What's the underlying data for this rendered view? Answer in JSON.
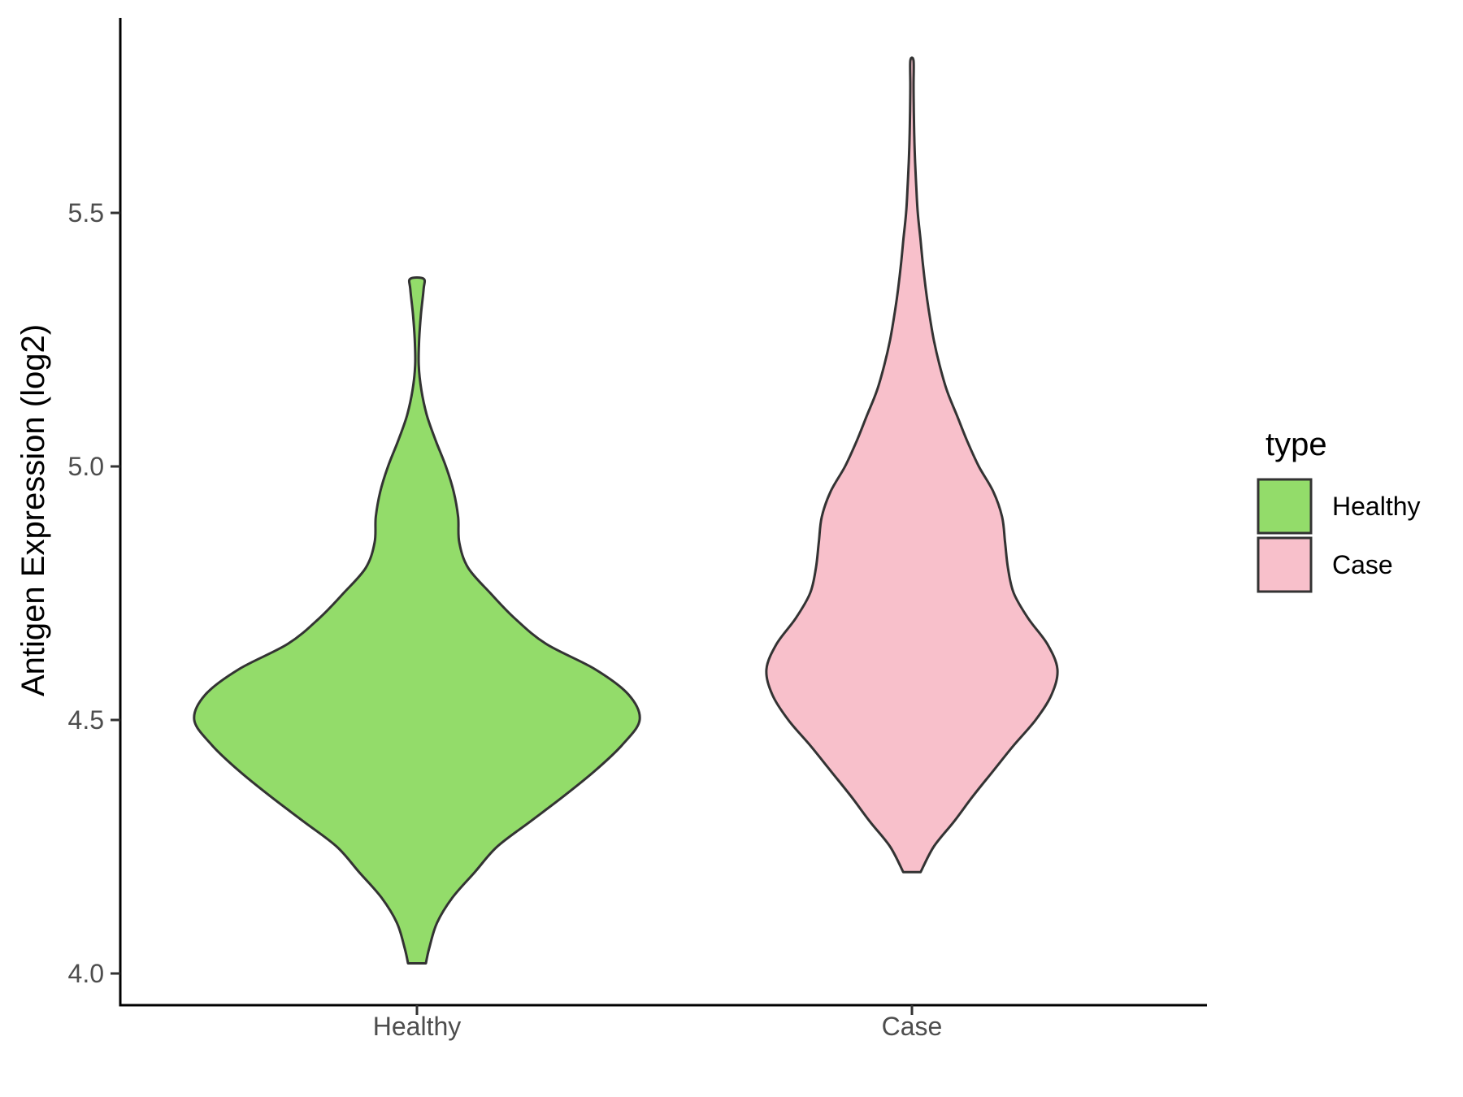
{
  "chart_data": {
    "type": "violin",
    "title": "",
    "xlabel": "",
    "ylabel": "Antigen Expression (log2)",
    "ylim": [
      3.93,
      5.95
    ],
    "yticks": [
      "4.0",
      "4.5",
      "5.0",
      "5.5"
    ],
    "categories": [
      "Healthy",
      "Case"
    ],
    "grid": false,
    "legend": {
      "title": "type",
      "position": "right",
      "entries": [
        {
          "label": "Healthy",
          "color": "#93DC6A"
        },
        {
          "label": "Case",
          "color": "#F8C0CB"
        }
      ]
    },
    "series": [
      {
        "category": "Healthy",
        "color": "#93DC6A",
        "min": 4.02,
        "max": 5.37,
        "density_profile": [
          [
            4.02,
            0.04
          ],
          [
            4.05,
            0.055
          ],
          [
            4.1,
            0.09
          ],
          [
            4.15,
            0.16
          ],
          [
            4.2,
            0.26
          ],
          [
            4.25,
            0.36
          ],
          [
            4.3,
            0.51
          ],
          [
            4.35,
            0.66
          ],
          [
            4.4,
            0.8
          ],
          [
            4.45,
            0.92
          ],
          [
            4.5,
            1.0
          ],
          [
            4.55,
            0.95
          ],
          [
            4.6,
            0.8
          ],
          [
            4.65,
            0.58
          ],
          [
            4.7,
            0.44
          ],
          [
            4.75,
            0.33
          ],
          [
            4.8,
            0.23
          ],
          [
            4.85,
            0.19
          ],
          [
            4.9,
            0.185
          ],
          [
            4.95,
            0.165
          ],
          [
            5.0,
            0.13
          ],
          [
            5.05,
            0.085
          ],
          [
            5.1,
            0.045
          ],
          [
            5.15,
            0.02
          ],
          [
            5.2,
            0.008
          ],
          [
            5.25,
            0.01
          ],
          [
            5.3,
            0.018
          ],
          [
            5.35,
            0.03
          ],
          [
            5.37,
            0.03
          ]
        ]
      },
      {
        "category": "Case",
        "color": "#F8C0CB",
        "min": 4.2,
        "max": 5.8,
        "density_profile": [
          [
            4.2,
            0.06
          ],
          [
            4.25,
            0.15
          ],
          [
            4.3,
            0.29
          ],
          [
            4.35,
            0.42
          ],
          [
            4.4,
            0.56
          ],
          [
            4.45,
            0.7
          ],
          [
            4.5,
            0.85
          ],
          [
            4.55,
            0.96
          ],
          [
            4.6,
            1.0
          ],
          [
            4.65,
            0.93
          ],
          [
            4.7,
            0.8
          ],
          [
            4.75,
            0.7
          ],
          [
            4.8,
            0.66
          ],
          [
            4.85,
            0.64
          ],
          [
            4.9,
            0.62
          ],
          [
            4.95,
            0.56
          ],
          [
            5.0,
            0.46
          ],
          [
            5.05,
            0.38
          ],
          [
            5.1,
            0.31
          ],
          [
            5.15,
            0.24
          ],
          [
            5.2,
            0.19
          ],
          [
            5.25,
            0.15
          ],
          [
            5.3,
            0.12
          ],
          [
            5.35,
            0.095
          ],
          [
            5.4,
            0.075
          ],
          [
            5.45,
            0.058
          ],
          [
            5.5,
            0.04
          ],
          [
            5.55,
            0.03
          ],
          [
            5.6,
            0.022
          ],
          [
            5.65,
            0.016
          ],
          [
            5.7,
            0.013
          ],
          [
            5.75,
            0.011
          ],
          [
            5.8,
            0.011
          ]
        ]
      }
    ]
  }
}
